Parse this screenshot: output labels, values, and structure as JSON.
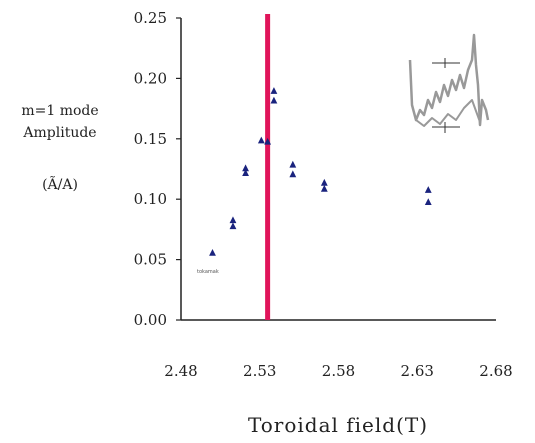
{
  "chart_data": {
    "type": "scatter",
    "title": "",
    "xlabel": "Toroidal field(T)",
    "ylabel_lines": [
      "m=1 mode",
      "Amplitude",
      "(Ã/A)"
    ],
    "xlim": [
      2.48,
      2.68
    ],
    "ylim": [
      0.0,
      0.25
    ],
    "x_ticks": [
      2.48,
      2.53,
      2.58,
      2.63,
      2.68
    ],
    "x_tick_labels": [
      "2.48",
      "2.53",
      "2.58",
      "2.63",
      "2.68"
    ],
    "y_ticks": [
      0.0,
      0.05,
      0.1,
      0.15,
      0.2,
      0.25
    ],
    "y_tick_labels": [
      "0.00",
      "0.05",
      "0.10",
      "0.15",
      "0.20",
      "0.25"
    ],
    "grid": false,
    "series": [
      {
        "marker": "triangle",
        "color": "#1a237e",
        "points": [
          [
            2.5,
            0.056
          ],
          [
            2.513,
            0.083
          ],
          [
            2.513,
            0.078
          ],
          [
            2.521,
            0.126
          ],
          [
            2.521,
            0.122
          ],
          [
            2.531,
            0.149
          ],
          [
            2.535,
            0.148
          ],
          [
            2.539,
            0.19
          ],
          [
            2.539,
            0.182
          ],
          [
            2.551,
            0.129
          ],
          [
            2.551,
            0.121
          ],
          [
            2.571,
            0.114
          ],
          [
            2.571,
            0.109
          ],
          [
            2.637,
            0.108
          ],
          [
            2.637,
            0.098
          ]
        ]
      }
    ],
    "vertical_line": {
      "x": 2.535,
      "color": "#e0145a"
    }
  },
  "inset": {
    "description_icon": "waveform-inset",
    "color": "#999999"
  },
  "small_annotation": "tokamak"
}
